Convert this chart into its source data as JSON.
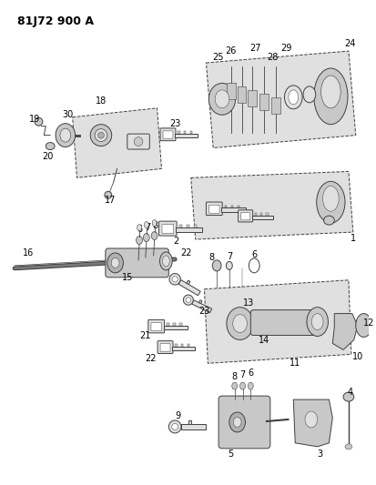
{
  "title": "81J72 900 A",
  "bg": "#ffffff",
  "lc": "#404040",
  "tc": "#000000",
  "fw": 4.13,
  "fh": 5.33,
  "dpi": 100,
  "gray1": "#c8c8c8",
  "gray2": "#e0e0e0",
  "gray3": "#b0b0b0"
}
